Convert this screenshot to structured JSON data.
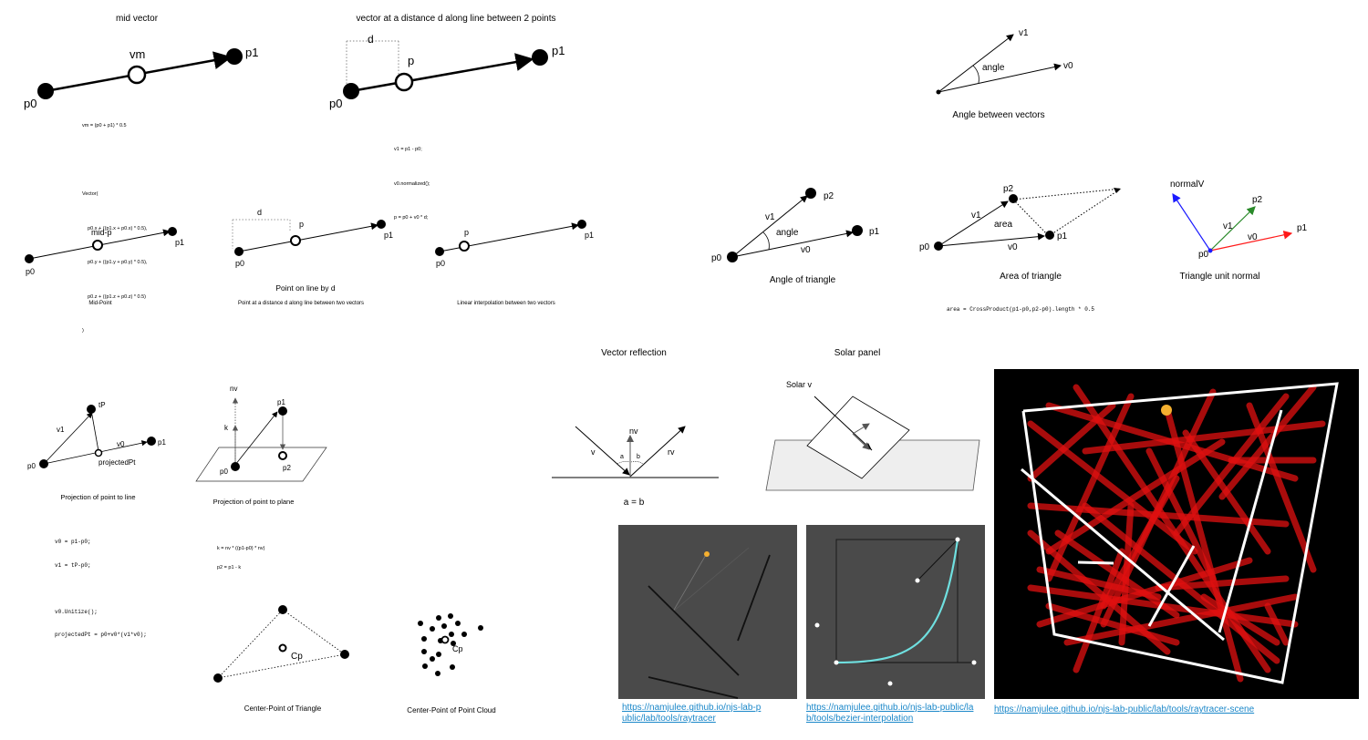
{
  "mid_vector": {
    "title": "mid vector",
    "labels": {
      "p0": "p0",
      "p1": "p1",
      "vm": "vm"
    },
    "code": [
      "vm = (p0 + p1) * 0.5",
      "",
      "Vector(",
      "    p0.x + ((p1.x + p0.x) * 0.5),",
      "    p0.y + ((p1.y + p0.y) * 0.5),",
      "    p0.z + ((p1.z + p0.z) * 0.5)",
      ")"
    ]
  },
  "distance_vector": {
    "title": "vector at a distance d along line between 2 points",
    "labels": {
      "p0": "p0",
      "p1": "p1",
      "p": "p",
      "d": "d"
    },
    "code": [
      "v1 = p1 - p0;",
      "v0.normalized();",
      "p = p0 + v0 * d;"
    ]
  },
  "angle_vectors": {
    "title": "Angle between vectors",
    "labels": {
      "v1": "v1",
      "v0": "v0",
      "angle": "angle"
    }
  },
  "mid_point": {
    "title": "Mid-Point",
    "labels": {
      "p0": "p0",
      "p1": "p1",
      "mid": "mid-p"
    }
  },
  "point_on_line": {
    "heading": "Point on line by d",
    "title": "Point at a distance d along line between two vectors",
    "labels": {
      "p0": "p0",
      "p1": "p1",
      "p": "p",
      "d": "d"
    }
  },
  "lerp": {
    "title": "Linear interpolation between two vectors",
    "labels": {
      "p0": "p0",
      "p1": "p1",
      "p": "p"
    }
  },
  "angle_triangle": {
    "title": "Angle of triangle",
    "labels": {
      "p0": "p0",
      "p1": "p1",
      "p2": "p2",
      "v0": "v0",
      "v1": "v1",
      "angle": "angle"
    }
  },
  "area_triangle": {
    "title": "Area of triangle",
    "labels": {
      "p0": "p0",
      "p1": "p1",
      "p2": "p2",
      "v0": "v0",
      "v1": "v1",
      "area": "area"
    },
    "code": "area = CrossProduct(p1-p0,p2-p0).length * 0.5"
  },
  "unit_normal": {
    "title": "Triangle unit normal",
    "labels": {
      "normal": "normalV",
      "p0": "p0",
      "p1": "p1",
      "p2": "p2",
      "v0": "v0",
      "v1": "v1"
    },
    "colors": {
      "normal": "#1a1aff",
      "v0": "#ff1a1a",
      "v1": "#2a8a2a"
    }
  },
  "vector_reflection": {
    "title": "Vector reflection",
    "labels": {
      "v": "v",
      "nv": "nv",
      "rv": "rv",
      "a": "a",
      "b": "b"
    },
    "equation": "a = b"
  },
  "solar_panel": {
    "title": "Solar panel",
    "labels": {
      "solar": "Solar v"
    }
  },
  "project_line": {
    "title": "Projection of point to line",
    "labels": {
      "tP": "tP",
      "p0": "p0",
      "p1": "p1",
      "v0": "v0",
      "v1": "v1",
      "proj": "projectedPt"
    },
    "code": [
      "v0 = p1-p0;",
      "v1 = tP-p0;",
      "",
      "v0.Unitize();",
      "projectedPt = p0+v0*(v1*v0);"
    ]
  },
  "project_plane": {
    "title": "Projection of point to plane",
    "labels": {
      "nv": "nv",
      "k": "k",
      "p0": "p0",
      "p1": "p1",
      "p2": "p2"
    },
    "code": [
      "k = nv * ((p1-p0) * nv)",
      "p2 = p1 - k"
    ]
  },
  "center_triangle": {
    "title": "Center-Point of Triangle",
    "labels": {
      "cp": "Cp"
    }
  },
  "center_cloud": {
    "title": "Center-Point of Point Cloud",
    "labels": {
      "cp": "Cp"
    }
  },
  "links": {
    "raytracer": [
      "https://namjulee.github.io/njs-lab-p",
      "ublic/lab/tools/raytracer"
    ],
    "bezier": [
      "https://namjulee.github.io/njs-lab-public/la",
      "b/tools/bezier-interpolation"
    ],
    "scene": "https://namjulee.github.io/njs-lab-public/lab/tools/raytracer-scene"
  },
  "colors": {
    "link": "#1a87c9",
    "panel_bg": "#4a4a4a",
    "ray": "#ff1a1a",
    "sun": "#f5b030",
    "curve": "#6fe0e0"
  }
}
